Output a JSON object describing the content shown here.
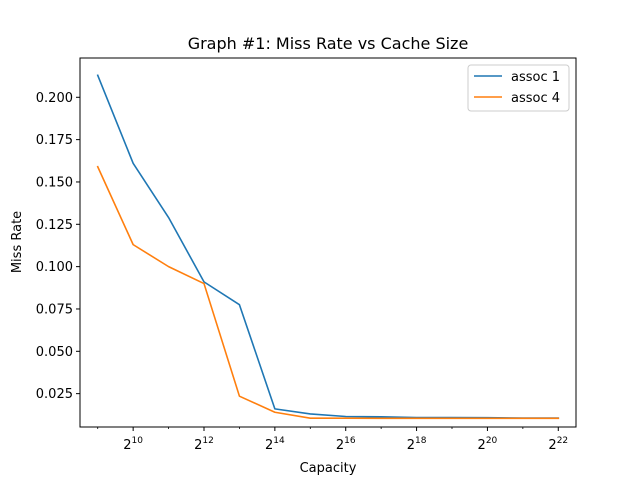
{
  "chart_data": {
    "type": "line",
    "title": "Graph #1: Miss Rate vs Cache Size",
    "xlabel": "Capacity",
    "ylabel": "Miss Rate",
    "x_scale": "log2",
    "x": [
      512,
      1024,
      2048,
      4096,
      8192,
      16384,
      32768,
      65536,
      131072,
      262144,
      524288,
      1048576,
      2097152,
      4194304
    ],
    "xlim": [
      362,
      5931642
    ],
    "ylim": [
      0.0053,
      0.2232
    ],
    "x_ticks": [
      {
        "value": 1024,
        "base": "2",
        "exp": "10"
      },
      {
        "value": 4096,
        "base": "2",
        "exp": "12"
      },
      {
        "value": 16384,
        "base": "2",
        "exp": "14"
      },
      {
        "value": 65536,
        "base": "2",
        "exp": "16"
      },
      {
        "value": 262144,
        "base": "2",
        "exp": "18"
      },
      {
        "value": 1048576,
        "base": "2",
        "exp": "20"
      },
      {
        "value": 4194304,
        "base": "2",
        "exp": "22"
      }
    ],
    "y_ticks": [
      {
        "value": 0.025,
        "label": "0.025"
      },
      {
        "value": 0.05,
        "label": "0.050"
      },
      {
        "value": 0.075,
        "label": "0.075"
      },
      {
        "value": 0.1,
        "label": "0.100"
      },
      {
        "value": 0.125,
        "label": "0.125"
      },
      {
        "value": 0.15,
        "label": "0.150"
      },
      {
        "value": 0.175,
        "label": "0.175"
      },
      {
        "value": 0.2,
        "label": "0.200"
      }
    ],
    "grid": false,
    "legend_position": "top-right",
    "series": [
      {
        "name": "assoc 1",
        "color": "#1f77b4",
        "values": [
          0.213,
          0.161,
          0.129,
          0.091,
          0.0775,
          0.016,
          0.013,
          0.0115,
          0.0113,
          0.0109,
          0.0109,
          0.0108,
          0.0106,
          0.0106
        ]
      },
      {
        "name": "assoc 4",
        "color": "#ff7f0e",
        "values": [
          0.159,
          0.113,
          0.1,
          0.09,
          0.0235,
          0.014,
          0.0105,
          0.0105,
          0.0104,
          0.0104,
          0.0104,
          0.0104,
          0.0104,
          0.0104
        ]
      }
    ]
  }
}
